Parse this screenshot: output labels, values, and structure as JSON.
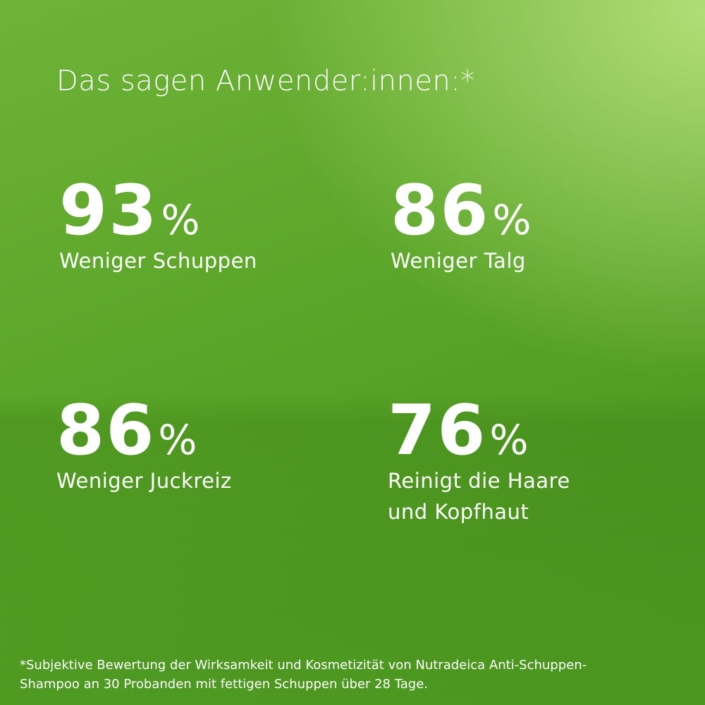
{
  "header": {
    "title": "Das sagen Anwender:innen:*"
  },
  "stats": [
    {
      "value": 93,
      "unit": "%",
      "label": [
        "Weniger Schuppen"
      ]
    },
    {
      "value": 86,
      "unit": "%",
      "label": [
        "Weniger Talg"
      ]
    },
    {
      "value": 86,
      "unit": "%",
      "label": [
        "Weniger Juckreiz"
      ]
    },
    {
      "value": 76,
      "unit": "%",
      "label": [
        "Reinigt die Haare",
        "und Kopfhaut"
      ]
    }
  ],
  "footnote": [
    "*Subjektive Bewertung der Wirksamkeit und Kosmetizität von Nutradeica Anti-Schuppen-",
    "Shampoo an 30 Probanden mit fettigen Schuppen über 28 Tage."
  ]
}
